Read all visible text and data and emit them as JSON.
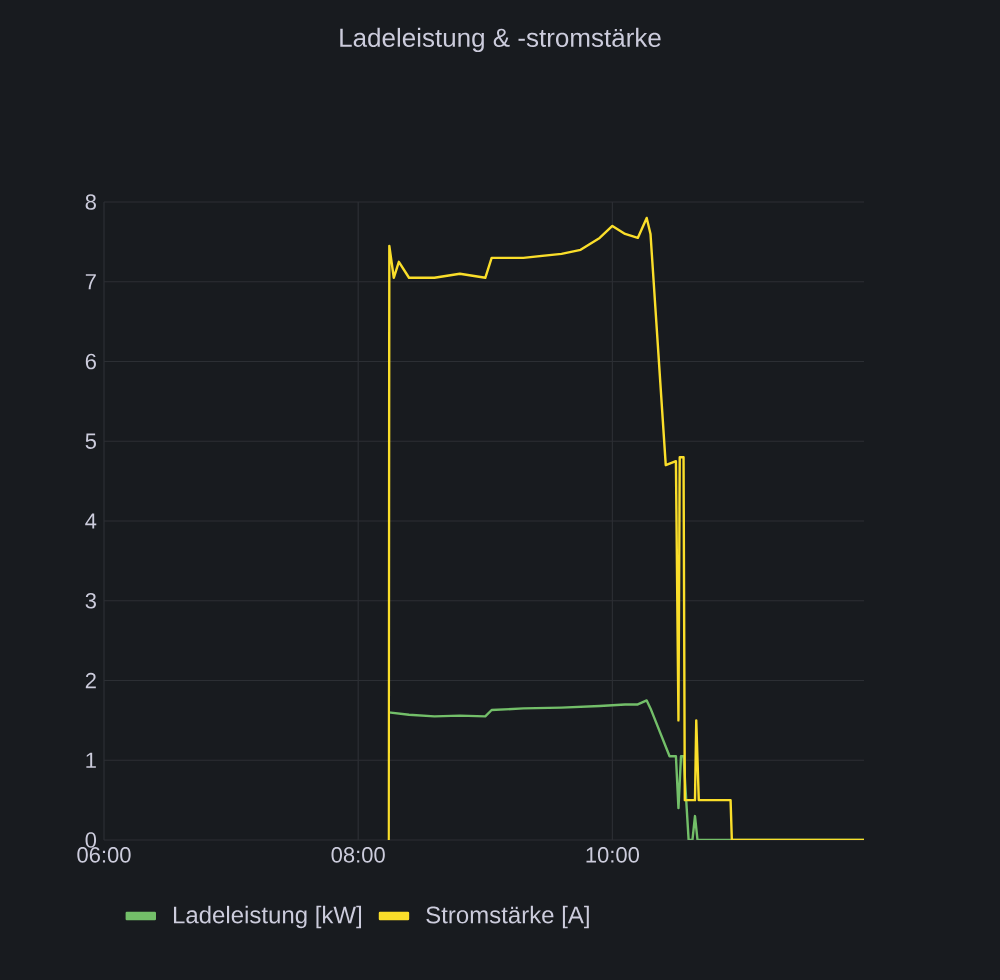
{
  "chart_data": {
    "type": "line",
    "title": "Ladeleistung & -stromstärke",
    "xlim": [
      6,
      11.98
    ],
    "ylim": [
      0,
      8
    ],
    "xticks": [
      {
        "value": 6,
        "label": "06:00"
      },
      {
        "value": 8,
        "label": "08:00"
      },
      {
        "value": 10,
        "label": "10:00"
      }
    ],
    "yticks": [
      0,
      1,
      2,
      3,
      4,
      5,
      6,
      7,
      8
    ],
    "grid": true,
    "legend": "bottom",
    "marker": "none",
    "line_style": "solid",
    "series": [
      {
        "name": "Ladeleistung [kW]",
        "color": "#73bf69",
        "x": [
          8.24,
          8.4,
          8.6,
          8.8,
          9.0,
          9.05,
          9.3,
          9.6,
          9.9,
          10.1,
          10.2,
          10.27,
          10.3,
          10.45,
          10.5,
          10.52,
          10.54,
          10.56,
          10.6,
          10.63,
          10.65,
          10.67,
          10.7,
          11.0,
          11.5,
          11.98
        ],
        "values": [
          1.6,
          1.57,
          1.55,
          1.56,
          1.55,
          1.63,
          1.65,
          1.66,
          1.68,
          1.7,
          1.7,
          1.75,
          1.65,
          1.05,
          1.05,
          0.4,
          1.05,
          1.05,
          0,
          0,
          0.3,
          0,
          0,
          0,
          0,
          0
        ]
      },
      {
        "name": "Stromstärke [A]",
        "color": "#fade2a",
        "x": [
          8.24,
          8.245,
          8.28,
          8.32,
          8.4,
          8.6,
          8.8,
          9.0,
          9.05,
          9.3,
          9.6,
          9.75,
          9.9,
          10.0,
          10.1,
          10.2,
          10.27,
          10.3,
          10.42,
          10.5,
          10.52,
          10.53,
          10.56,
          10.57,
          10.58,
          10.65,
          10.66,
          10.68,
          10.93,
          10.94,
          11.5,
          11.98
        ],
        "values": [
          0,
          7.45,
          7.05,
          7.25,
          7.05,
          7.05,
          7.1,
          7.05,
          7.3,
          7.3,
          7.35,
          7.4,
          7.55,
          7.7,
          7.6,
          7.55,
          7.8,
          7.6,
          4.7,
          4.75,
          1.5,
          4.8,
          4.8,
          0.5,
          0.5,
          0.5,
          1.5,
          0.5,
          0.5,
          0,
          0,
          0
        ]
      }
    ]
  }
}
